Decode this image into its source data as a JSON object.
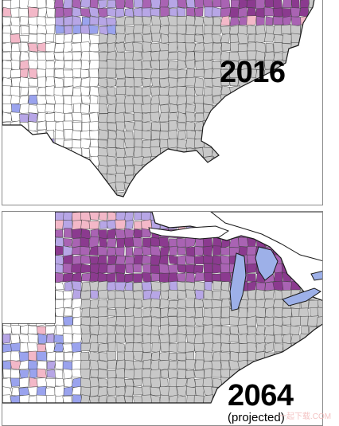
{
  "colors": {
    "counties_gray": "#c8c8c8",
    "county_border": "#3a3a3a",
    "uncolored": "#ffffff",
    "purple_dark": "#8b3a8f",
    "purple_mid": "#a963b3",
    "lavender": "#b7a6e6",
    "blue_light": "#9aa3ee",
    "pink": "#f3b8c8",
    "lake_blue": "#9db0e8"
  },
  "panels": {
    "top": {
      "year": "2016",
      "note": ""
    },
    "bottom": {
      "year": "2064",
      "note": "(projected)"
    }
  },
  "watermark": "一起下载.COM"
}
